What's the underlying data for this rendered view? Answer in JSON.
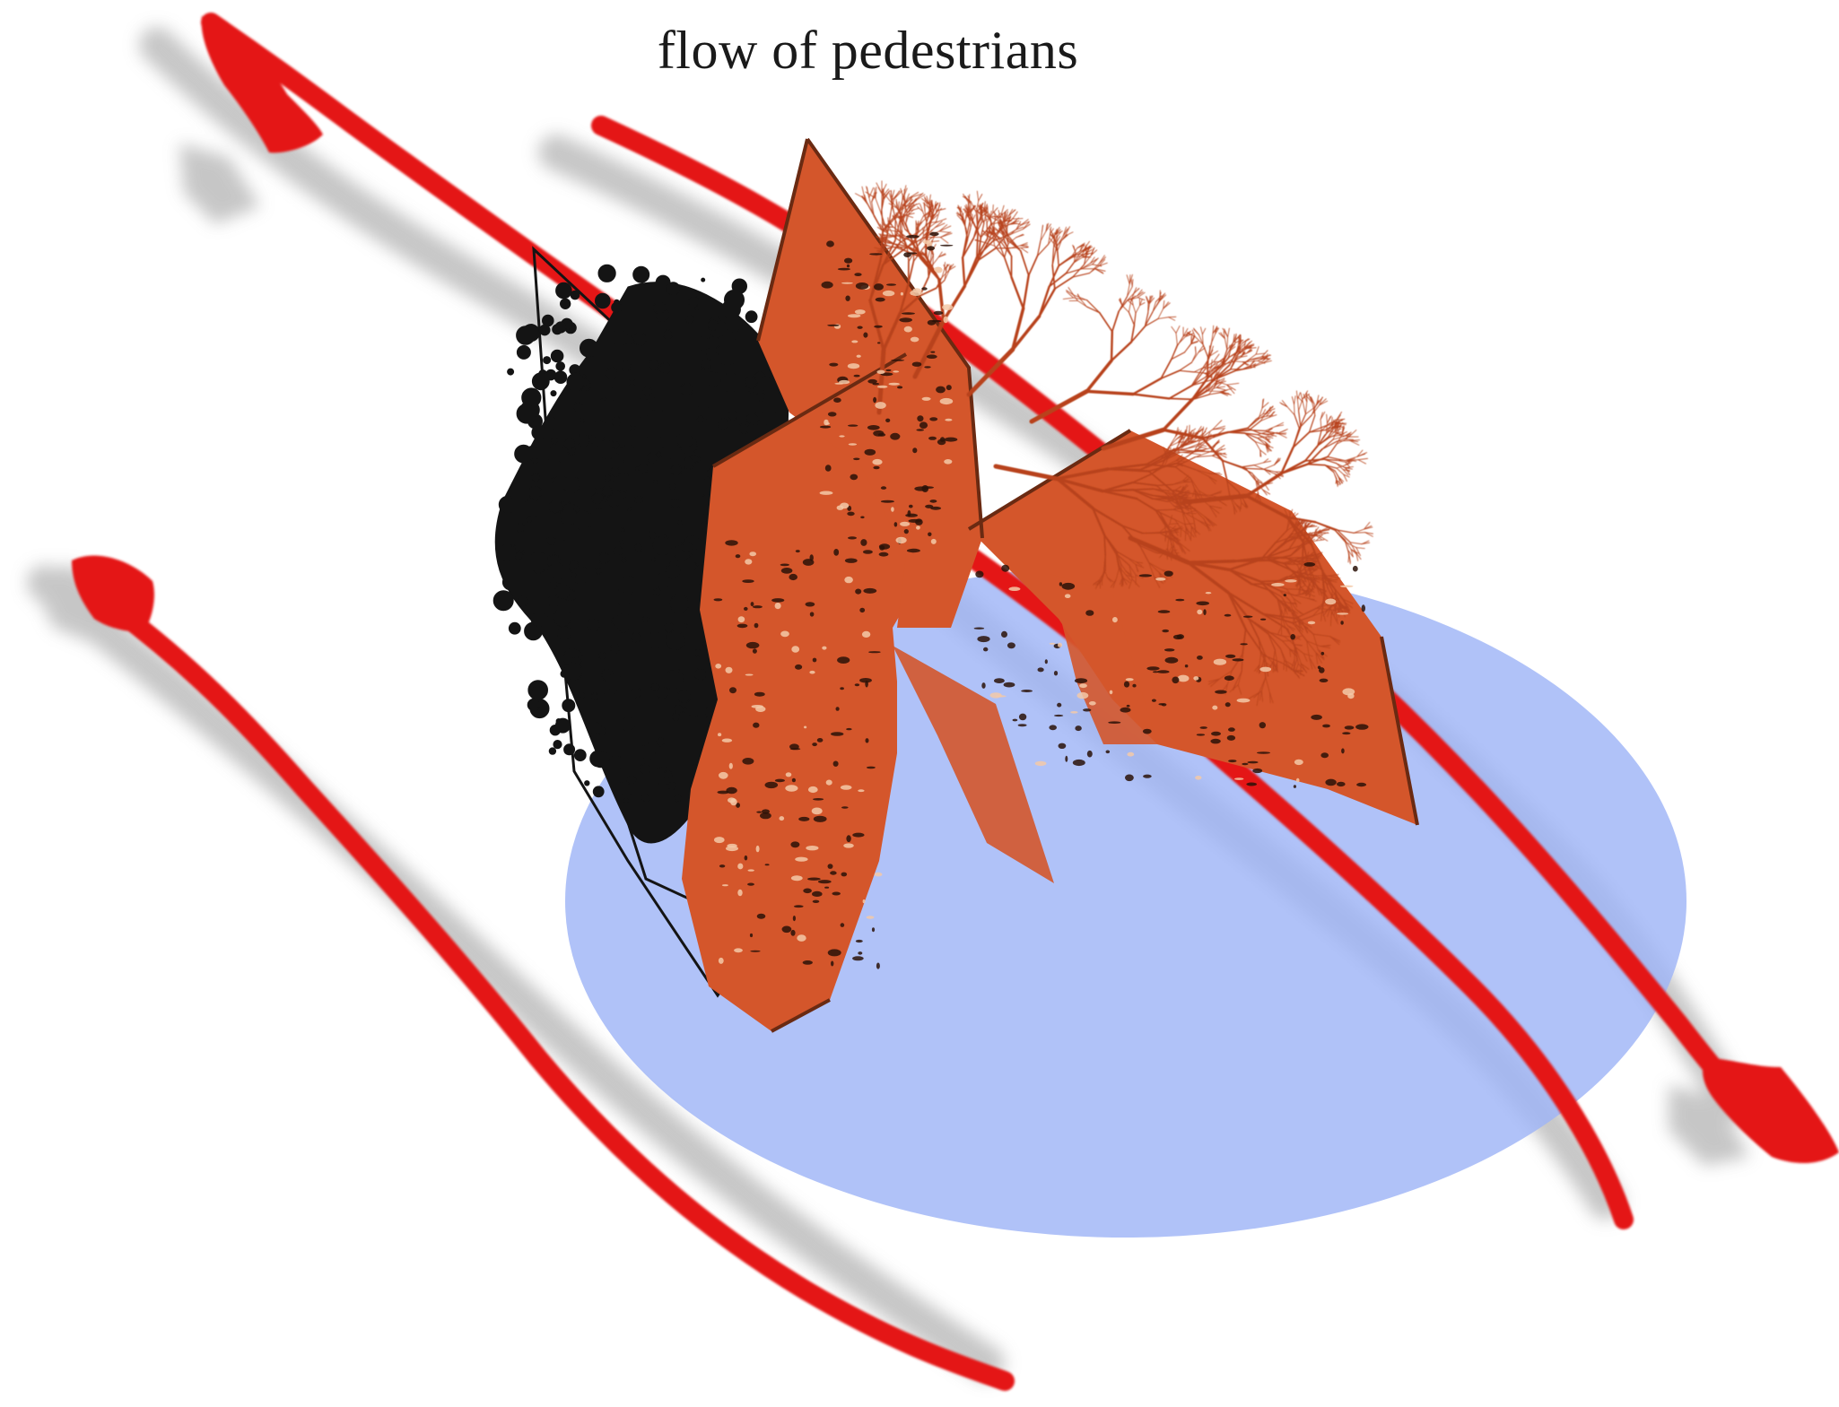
{
  "diagram": {
    "caption": "flow of pedestrians",
    "colors": {
      "flow_arrow": "#e41414",
      "flow_shadow": "#bdbdbd",
      "ground_zone": "#9fb4f7",
      "sculpture_panel": "#d4562b",
      "sculpture_shadow": "#141414",
      "branch": "#b8431d"
    },
    "arrows": [
      {
        "name": "flow-arrow-top",
        "heads": [
          "start-diamond"
        ]
      },
      {
        "name": "flow-arrow-middle",
        "heads": [
          "end-diamond"
        ]
      },
      {
        "name": "flow-arrow-bottom",
        "heads": [
          "start-diamond"
        ]
      }
    ]
  }
}
